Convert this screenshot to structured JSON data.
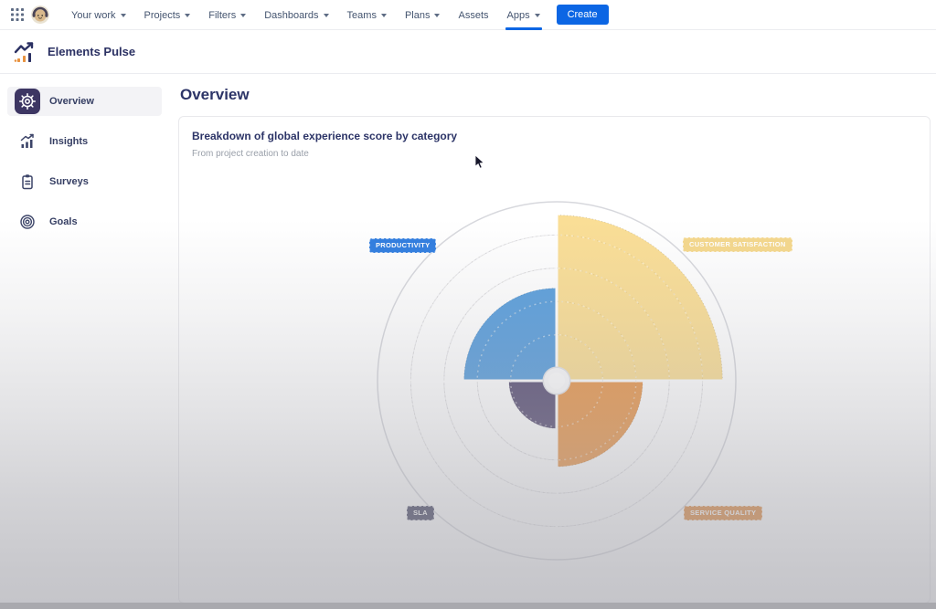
{
  "topnav": {
    "items": [
      {
        "label": "Your work",
        "caret": true,
        "active": false
      },
      {
        "label": "Projects",
        "caret": true,
        "active": false
      },
      {
        "label": "Filters",
        "caret": true,
        "active": false
      },
      {
        "label": "Dashboards",
        "caret": true,
        "active": false
      },
      {
        "label": "Teams",
        "caret": true,
        "active": false
      },
      {
        "label": "Plans",
        "caret": true,
        "active": false
      },
      {
        "label": "Assets",
        "caret": false,
        "active": false
      },
      {
        "label": "Apps",
        "caret": true,
        "active": true
      }
    ],
    "create_button": "Create"
  },
  "app_header": {
    "title": "Elements Pulse"
  },
  "sidebar": {
    "items": [
      {
        "label": "Overview",
        "icon": "gear-icon",
        "selected": true
      },
      {
        "label": "Insights",
        "icon": "insights-chart-icon",
        "selected": false
      },
      {
        "label": "Surveys",
        "icon": "clipboard-icon",
        "selected": false
      },
      {
        "label": "Goals",
        "icon": "target-icon",
        "selected": false
      }
    ]
  },
  "main": {
    "page_title": "Overview"
  },
  "card": {
    "title": "Breakdown of global experience score by category",
    "subtitle": "From project creation to date"
  },
  "colors": {
    "accent_blue": "#0C66E4",
    "heading_navy": "#2C3467",
    "logo_orange": "#E8923F"
  },
  "chart_data": {
    "type": "polar",
    "title": "Breakdown of global experience score by category",
    "subtitle": "From project creation to date",
    "max_value": 100,
    "gridline_values": [
      20,
      40,
      60,
      80,
      100
    ],
    "grid": true,
    "legend_position": "around-chart",
    "series": [
      {
        "name": "PRODUCTIVITY",
        "quadrant": "top-left",
        "value": 48,
        "color": "#5B9FDC",
        "badge_color": "#2F7DE0"
      },
      {
        "name": "CUSTOMER SATISFACTION",
        "quadrant": "top-right",
        "value": 92,
        "color": "#FADE96",
        "badge_color": "#F5D88C"
      },
      {
        "name": "SERVICE QUALITY",
        "quadrant": "bottom-right",
        "value": 44,
        "color": "#E9994F",
        "badge_color": "#DF8B41"
      },
      {
        "name": "SLA",
        "quadrant": "bottom-left",
        "value": 21,
        "color": "#5D5378",
        "badge_color": "#41415F"
      }
    ]
  }
}
